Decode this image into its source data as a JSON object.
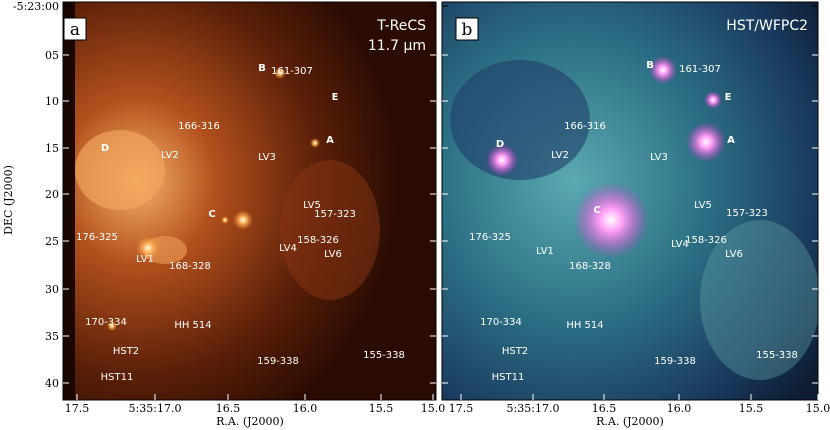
{
  "y_axis": {
    "label": "DEC (J2000)",
    "ticks": [
      "-5:23:00",
      "05",
      "10",
      "15",
      "20",
      "25",
      "30",
      "35",
      "40"
    ]
  },
  "panels": [
    {
      "letter": "a",
      "instrument": "T-ReCS",
      "wavelength": "11.7 μm",
      "x_axis": {
        "label": "R.A. (J2000)",
        "ticks": [
          "17.5",
          "5:35:17.0",
          "16.5",
          "16.0",
          "15.5",
          "15.0"
        ]
      },
      "sources": [
        "B",
        "161-307",
        "E",
        "166-316",
        "D",
        "LV2",
        "LV3",
        "A",
        "C",
        "LV5",
        "157-323",
        "176-325",
        "158-326",
        "LV4",
        "LV6",
        "LV1",
        "168-328",
        "170-334",
        "HH 514",
        "HST2",
        "159-338",
        "155-338",
        "HST11"
      ]
    },
    {
      "letter": "b",
      "instrument": "HST/WFPC2",
      "x_axis": {
        "label": "R.A. (J2000)",
        "ticks": [
          "17.5",
          "5:35:17.0",
          "16.5",
          "16.0",
          "15.5",
          "15.0"
        ]
      },
      "sources": [
        "B",
        "161-307",
        "E",
        "166-316",
        "D",
        "LV2",
        "LV3",
        "A",
        "C",
        "LV5",
        "157-323",
        "176-325",
        "158-326",
        "LV4",
        "LV6",
        "LV1",
        "168-328",
        "170-334",
        "HH 514",
        "HST2",
        "159-338",
        "155-338",
        "HST11"
      ]
    }
  ]
}
